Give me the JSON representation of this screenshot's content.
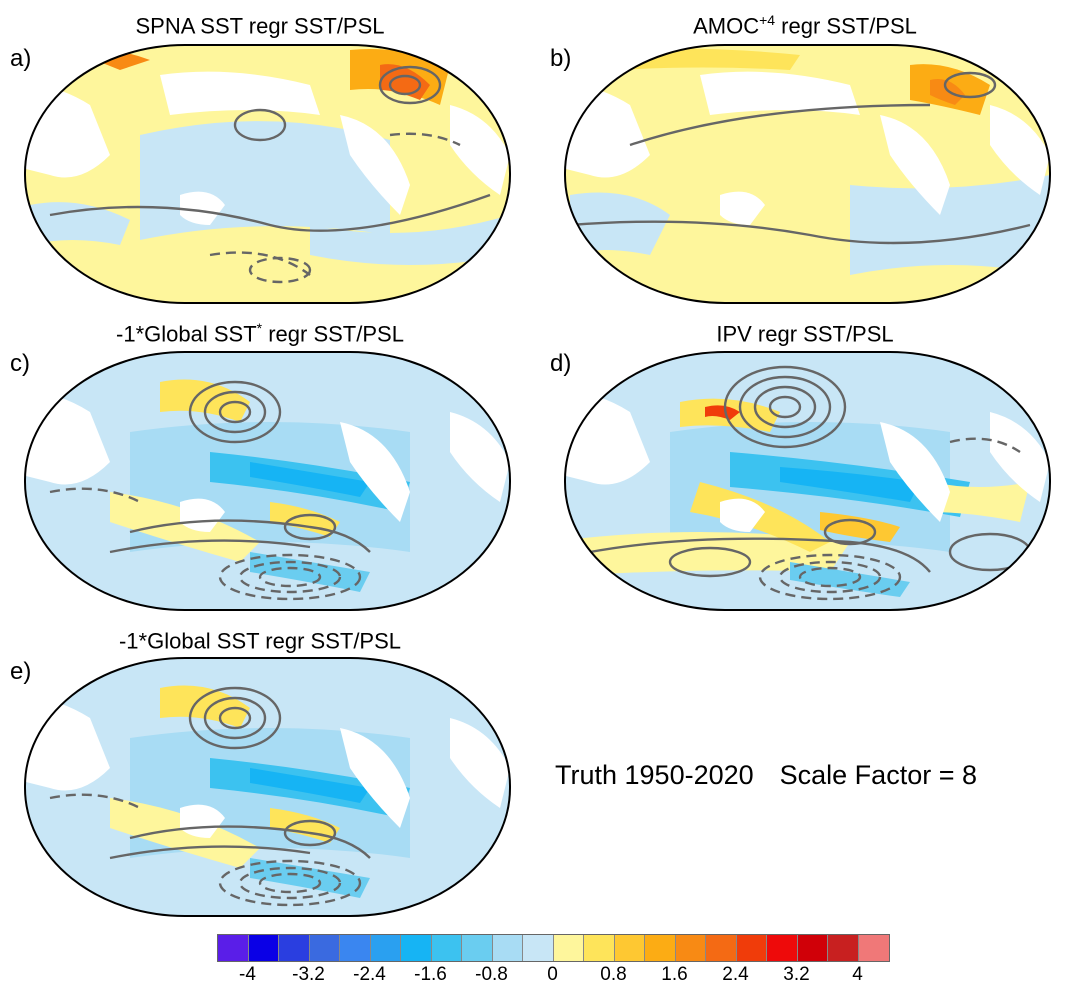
{
  "panels": [
    {
      "letter": "a)",
      "title_main": "SPNA SST regr SST/PSL",
      "title_sup": "",
      "title_rest": ""
    },
    {
      "letter": "b)",
      "title_main": "AMOC",
      "title_sup": "+4",
      "title_rest": " regr SST/PSL"
    },
    {
      "letter": "c)",
      "title_main": "-1*Global SST",
      "title_sup": "*",
      "title_rest": " regr SST/PSL"
    },
    {
      "letter": "d)",
      "title_main": "IPV regr SST/PSL",
      "title_sup": "",
      "title_rest": ""
    },
    {
      "letter": "e)",
      "title_main": "-1*Global SST regr SST/PSL",
      "title_sup": "",
      "title_rest": ""
    }
  ],
  "note": {
    "period": "Truth 1950-2020",
    "scale": "Scale Factor = 8"
  },
  "colorbar": {
    "colors": [
      "#5a1ee8",
      "#0a00e6",
      "#2a3ee0",
      "#3a6ae0",
      "#3a86f0",
      "#2aa0f0",
      "#16b4f4",
      "#3cc2f0",
      "#6acdf0",
      "#a8dcf4",
      "#c8e6f6",
      "#fef69c",
      "#fee45a",
      "#fec832",
      "#fcac14",
      "#f88a14",
      "#f46a14",
      "#f03c0a",
      "#ee0a0a",
      "#d00008",
      "#c82020",
      "#f07878"
    ],
    "labels": [
      "-4",
      "-3.2",
      "-2.4",
      "-1.6",
      "-0.8",
      "0",
      "0.8",
      "1.6",
      "2.4",
      "3.2",
      "4"
    ]
  }
}
